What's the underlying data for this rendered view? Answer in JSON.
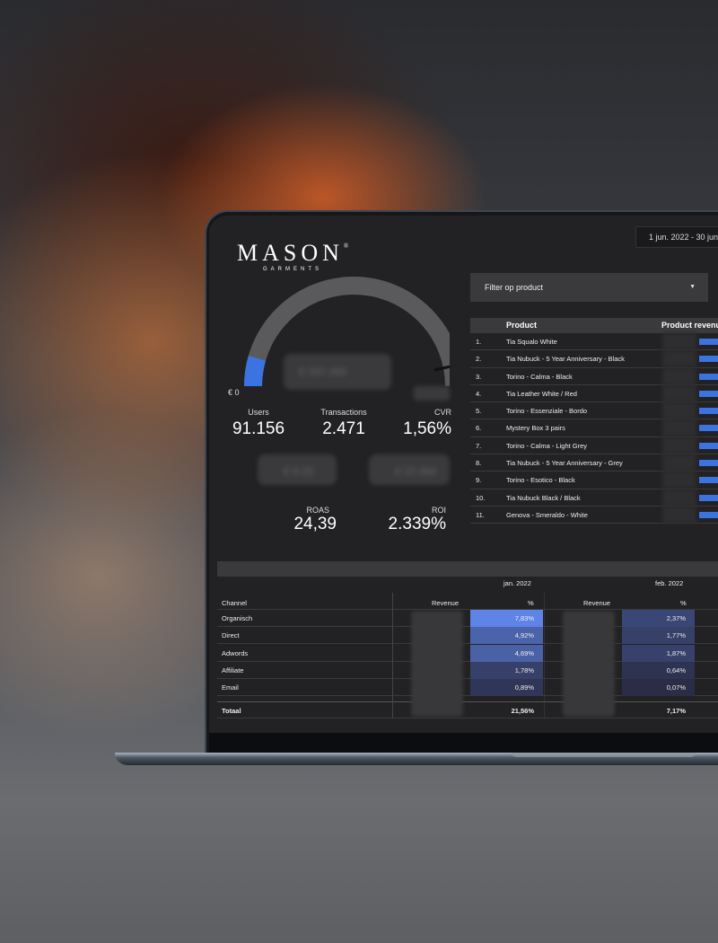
{
  "brand": {
    "name": "MASON",
    "mark": "®",
    "sub": "GARMENTS"
  },
  "date_range": "1 jun. 2022 - 30 jun",
  "gauge": {
    "min_label": "€ 0",
    "fill_fraction": 0.09,
    "accent": "#3b74e0"
  },
  "kpis": {
    "users": {
      "label": "Users",
      "value": "91.156"
    },
    "transactions": {
      "label": "Transactions",
      "value": "2.471"
    },
    "cvr": {
      "label": "CVR",
      "value": "1,56%"
    },
    "roas": {
      "label": "ROAS",
      "value": "24,39"
    },
    "roi": {
      "label": "ROI",
      "value": "2.339%"
    }
  },
  "filter": {
    "label": "Filter op product"
  },
  "product_table": {
    "headers": {
      "product": "Product",
      "revenue": "Product revenu"
    },
    "rows": [
      {
        "rank": "1.",
        "name": "Tia Squalo White"
      },
      {
        "rank": "2.",
        "name": "Tia Nubuck - 5 Year Anniversary - Black"
      },
      {
        "rank": "3.",
        "name": "Torino - Calma - Black"
      },
      {
        "rank": "4.",
        "name": "Tia Leather White / Red"
      },
      {
        "rank": "5.",
        "name": "Torino - Essenziale - Bordo"
      },
      {
        "rank": "6.",
        "name": "Mystery Box 3 pairs"
      },
      {
        "rank": "7.",
        "name": "Torino - Calma - Light Grey"
      },
      {
        "rank": "8.",
        "name": "Tia Nubuck - 5 Year Anniversary - Grey"
      },
      {
        "rank": "9.",
        "name": "Torino - Esotico - Black"
      },
      {
        "rank": "10.",
        "name": "Tia Nubuck Black / Black"
      },
      {
        "rank": "11.",
        "name": "Genova - Smeraldo - White"
      }
    ]
  },
  "channel_table": {
    "months": [
      "jan. 2022",
      "feb. 2022"
    ],
    "headers": {
      "channel": "Channel",
      "revenue": "Revenue",
      "pct": "%"
    },
    "rows": [
      {
        "channel": "Organisch",
        "jan": "7,83%",
        "feb": "2,37%"
      },
      {
        "channel": "Direct",
        "jan": "4,92%",
        "feb": "1,77%"
      },
      {
        "channel": "Adwords",
        "jan": "4,69%",
        "feb": "1,87%"
      },
      {
        "channel": "Affiliate",
        "jan": "1,78%",
        "feb": "0,64%"
      },
      {
        "channel": "Email",
        "jan": "0,89%",
        "feb": "0,07%"
      }
    ],
    "total": {
      "label": "Totaal",
      "jan": "21,56%",
      "feb": "7,17%"
    }
  }
}
